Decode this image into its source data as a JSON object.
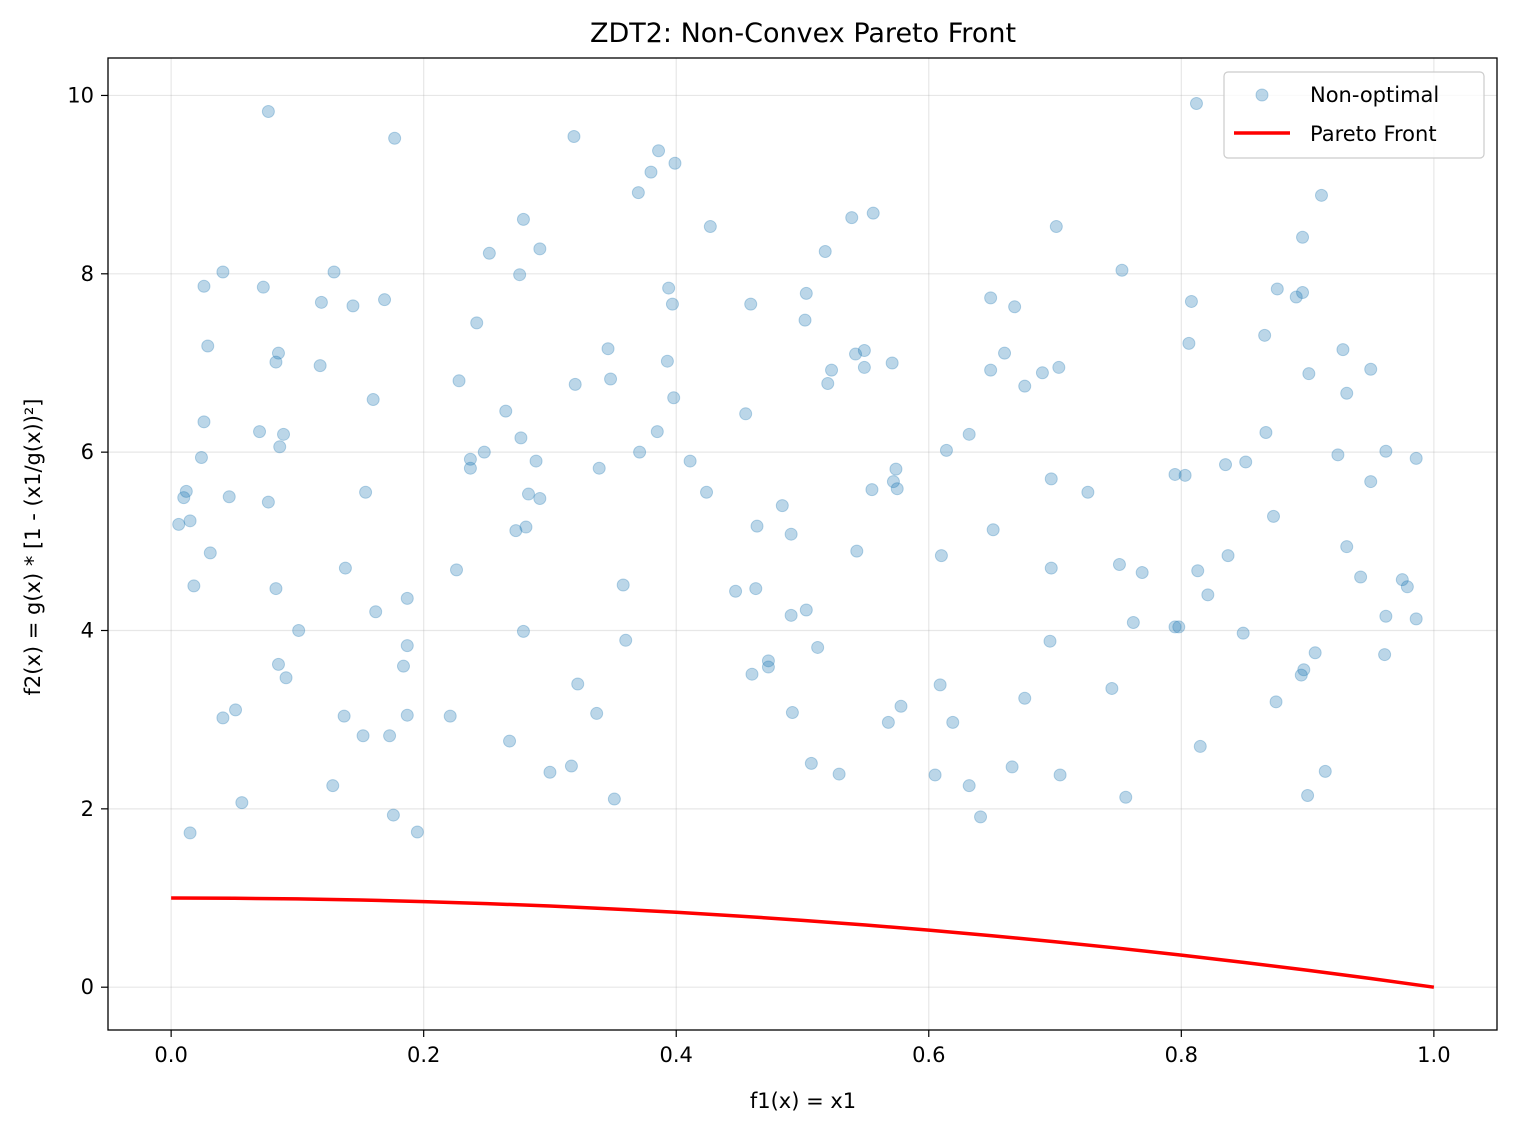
{
  "chart_data": {
    "type": "scatter",
    "title": "ZDT2: Non-Convex Pareto Front",
    "xlabel": "f1(x) = x1",
    "ylabel": "f2(x) = g(x) * [1 - (x1/g(x))²]",
    "xlim": [
      -0.05,
      1.05
    ],
    "ylim": [
      -0.48,
      10.42
    ],
    "xticks": [
      0.0,
      0.2,
      0.4,
      0.6,
      0.8,
      1.0
    ],
    "xtick_labels": [
      "0.0",
      "0.2",
      "0.4",
      "0.6",
      "0.8",
      "1.0"
    ],
    "yticks": [
      0,
      2,
      4,
      6,
      8,
      10
    ],
    "ytick_labels": [
      "0",
      "2",
      "4",
      "6",
      "8",
      "10"
    ],
    "grid": true,
    "legend_position": "top-right",
    "series": [
      {
        "name": "Non-optimal",
        "kind": "scatter",
        "color": "#1f77b4",
        "opacity": 0.3,
        "points": [
          [
            0.077,
            9.82
          ],
          [
            0.177,
            9.52
          ],
          [
            0.319,
            9.54
          ],
          [
            0.386,
            9.38
          ],
          [
            0.399,
            9.24
          ],
          [
            0.38,
            9.14
          ],
          [
            0.37,
            8.91
          ],
          [
            0.812,
            9.91
          ],
          [
            0.911,
            8.88
          ],
          [
            0.279,
            8.61
          ],
          [
            0.427,
            8.53
          ],
          [
            0.539,
            8.63
          ],
          [
            0.556,
            8.68
          ],
          [
            0.701,
            8.53
          ],
          [
            0.896,
            8.41
          ],
          [
            0.292,
            8.28
          ],
          [
            0.252,
            8.23
          ],
          [
            0.518,
            8.25
          ],
          [
            0.041,
            8.02
          ],
          [
            0.129,
            8.02
          ],
          [
            0.026,
            7.86
          ],
          [
            0.073,
            7.85
          ],
          [
            0.276,
            7.99
          ],
          [
            0.753,
            8.04
          ],
          [
            0.394,
            7.84
          ],
          [
            0.503,
            7.78
          ],
          [
            0.876,
            7.83
          ],
          [
            0.896,
            7.79
          ],
          [
            0.891,
            7.74
          ],
          [
            0.119,
            7.68
          ],
          [
            0.144,
            7.64
          ],
          [
            0.169,
            7.71
          ],
          [
            0.397,
            7.66
          ],
          [
            0.459,
            7.66
          ],
          [
            0.649,
            7.73
          ],
          [
            0.668,
            7.63
          ],
          [
            0.808,
            7.69
          ],
          [
            0.242,
            7.45
          ],
          [
            0.502,
            7.48
          ],
          [
            0.866,
            7.31
          ],
          [
            0.029,
            7.19
          ],
          [
            0.085,
            7.11
          ],
          [
            0.083,
            7.01
          ],
          [
            0.118,
            6.97
          ],
          [
            0.346,
            7.16
          ],
          [
            0.393,
            7.02
          ],
          [
            0.542,
            7.1
          ],
          [
            0.549,
            7.14
          ],
          [
            0.549,
            6.95
          ],
          [
            0.571,
            7.0
          ],
          [
            0.523,
            6.92
          ],
          [
            0.52,
            6.77
          ],
          [
            0.806,
            7.22
          ],
          [
            0.928,
            7.15
          ],
          [
            0.649,
            6.92
          ],
          [
            0.66,
            7.11
          ],
          [
            0.69,
            6.89
          ],
          [
            0.703,
            6.95
          ],
          [
            0.901,
            6.88
          ],
          [
            0.95,
            6.93
          ],
          [
            0.228,
            6.8
          ],
          [
            0.32,
            6.76
          ],
          [
            0.348,
            6.82
          ],
          [
            0.676,
            6.74
          ],
          [
            0.931,
            6.66
          ],
          [
            0.16,
            6.59
          ],
          [
            0.398,
            6.61
          ],
          [
            0.265,
            6.46
          ],
          [
            0.455,
            6.43
          ],
          [
            0.026,
            6.34
          ],
          [
            0.07,
            6.23
          ],
          [
            0.089,
            6.2
          ],
          [
            0.086,
            6.06
          ],
          [
            0.277,
            6.16
          ],
          [
            0.385,
            6.23
          ],
          [
            0.632,
            6.2
          ],
          [
            0.867,
            6.22
          ],
          [
            0.024,
            5.94
          ],
          [
            0.237,
            5.92
          ],
          [
            0.248,
            6.0
          ],
          [
            0.371,
            6.0
          ],
          [
            0.614,
            6.02
          ],
          [
            0.924,
            5.97
          ],
          [
            0.962,
            6.01
          ],
          [
            0.237,
            5.82
          ],
          [
            0.289,
            5.9
          ],
          [
            0.339,
            5.82
          ],
          [
            0.411,
            5.9
          ],
          [
            0.574,
            5.81
          ],
          [
            0.795,
            5.75
          ],
          [
            0.803,
            5.74
          ],
          [
            0.835,
            5.86
          ],
          [
            0.851,
            5.89
          ],
          [
            0.986,
            5.93
          ],
          [
            0.012,
            5.56
          ],
          [
            0.01,
            5.49
          ],
          [
            0.046,
            5.5
          ],
          [
            0.154,
            5.55
          ],
          [
            0.283,
            5.53
          ],
          [
            0.292,
            5.48
          ],
          [
            0.424,
            5.55
          ],
          [
            0.555,
            5.58
          ],
          [
            0.572,
            5.67
          ],
          [
            0.575,
            5.59
          ],
          [
            0.697,
            5.7
          ],
          [
            0.726,
            5.55
          ],
          [
            0.95,
            5.67
          ],
          [
            0.006,
            5.19
          ],
          [
            0.015,
            5.23
          ],
          [
            0.077,
            5.44
          ],
          [
            0.273,
            5.12
          ],
          [
            0.281,
            5.16
          ],
          [
            0.464,
            5.17
          ],
          [
            0.484,
            5.4
          ],
          [
            0.491,
            5.08
          ],
          [
            0.651,
            5.13
          ],
          [
            0.873,
            5.28
          ],
          [
            0.031,
            4.87
          ],
          [
            0.543,
            4.89
          ],
          [
            0.61,
            4.84
          ],
          [
            0.837,
            4.84
          ],
          [
            0.931,
            4.94
          ],
          [
            0.138,
            4.7
          ],
          [
            0.226,
            4.68
          ],
          [
            0.751,
            4.74
          ],
          [
            0.697,
            4.7
          ],
          [
            0.769,
            4.65
          ],
          [
            0.813,
            4.67
          ],
          [
            0.942,
            4.6
          ],
          [
            0.975,
            4.57
          ],
          [
            0.018,
            4.5
          ],
          [
            0.083,
            4.47
          ],
          [
            0.358,
            4.51
          ],
          [
            0.447,
            4.44
          ],
          [
            0.463,
            4.47
          ],
          [
            0.979,
            4.49
          ],
          [
            0.162,
            4.21
          ],
          [
            0.187,
            4.36
          ],
          [
            0.491,
            4.17
          ],
          [
            0.503,
            4.23
          ],
          [
            0.821,
            4.4
          ],
          [
            0.101,
            4.0
          ],
          [
            0.279,
            3.99
          ],
          [
            0.36,
            3.89
          ],
          [
            0.762,
            4.09
          ],
          [
            0.795,
            4.04
          ],
          [
            0.798,
            4.04
          ],
          [
            0.849,
            3.97
          ],
          [
            0.962,
            4.16
          ],
          [
            0.986,
            4.13
          ],
          [
            0.187,
            3.83
          ],
          [
            0.512,
            3.81
          ],
          [
            0.696,
            3.88
          ],
          [
            0.906,
            3.75
          ],
          [
            0.961,
            3.73
          ],
          [
            0.085,
            3.62
          ],
          [
            0.184,
            3.6
          ],
          [
            0.473,
            3.66
          ],
          [
            0.473,
            3.59
          ],
          [
            0.46,
            3.51
          ],
          [
            0.897,
            3.56
          ],
          [
            0.895,
            3.5
          ],
          [
            0.091,
            3.47
          ],
          [
            0.322,
            3.4
          ],
          [
            0.609,
            3.39
          ],
          [
            0.745,
            3.35
          ],
          [
            0.051,
            3.11
          ],
          [
            0.041,
            3.02
          ],
          [
            0.137,
            3.04
          ],
          [
            0.187,
            3.05
          ],
          [
            0.221,
            3.04
          ],
          [
            0.337,
            3.07
          ],
          [
            0.492,
            3.08
          ],
          [
            0.578,
            3.15
          ],
          [
            0.568,
            2.97
          ],
          [
            0.619,
            2.97
          ],
          [
            0.676,
            3.24
          ],
          [
            0.875,
            3.2
          ],
          [
            0.152,
            2.82
          ],
          [
            0.173,
            2.82
          ],
          [
            0.268,
            2.76
          ],
          [
            0.815,
            2.7
          ],
          [
            0.3,
            2.41
          ],
          [
            0.317,
            2.48
          ],
          [
            0.507,
            2.51
          ],
          [
            0.529,
            2.39
          ],
          [
            0.605,
            2.38
          ],
          [
            0.666,
            2.47
          ],
          [
            0.704,
            2.38
          ],
          [
            0.914,
            2.42
          ],
          [
            0.128,
            2.26
          ],
          [
            0.632,
            2.26
          ],
          [
            0.756,
            2.13
          ],
          [
            0.9,
            2.15
          ],
          [
            0.056,
            2.07
          ],
          [
            0.351,
            2.11
          ],
          [
            0.176,
            1.93
          ],
          [
            0.641,
            1.91
          ],
          [
            0.015,
            1.73
          ],
          [
            0.195,
            1.74
          ]
        ]
      },
      {
        "name": "Pareto Front",
        "kind": "line",
        "color": "#ff0000",
        "x": [
          0.0,
          0.05,
          0.1,
          0.15,
          0.2,
          0.25,
          0.3,
          0.35,
          0.4,
          0.45,
          0.5,
          0.55,
          0.6,
          0.65,
          0.7,
          0.75,
          0.8,
          0.85,
          0.9,
          0.95,
          1.0
        ],
        "y": [
          1.0,
          0.9975,
          0.99,
          0.9775,
          0.96,
          0.9375,
          0.91,
          0.8775,
          0.84,
          0.7975,
          0.75,
          0.6975,
          0.64,
          0.5775,
          0.51,
          0.4375,
          0.36,
          0.2775,
          0.19,
          0.0975,
          0.0
        ]
      }
    ]
  }
}
